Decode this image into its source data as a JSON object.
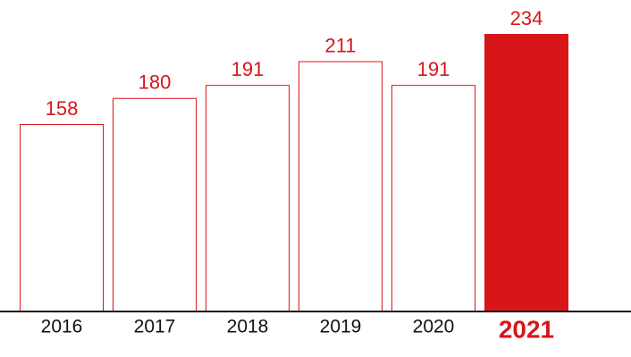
{
  "chart_data": {
    "type": "bar",
    "categories": [
      "2016",
      "2017",
      "2018",
      "2019",
      "2020",
      "2021"
    ],
    "values": [
      158,
      180,
      191,
      211,
      191,
      234
    ],
    "color": "#d7161a",
    "highlight": "2021"
  }
}
